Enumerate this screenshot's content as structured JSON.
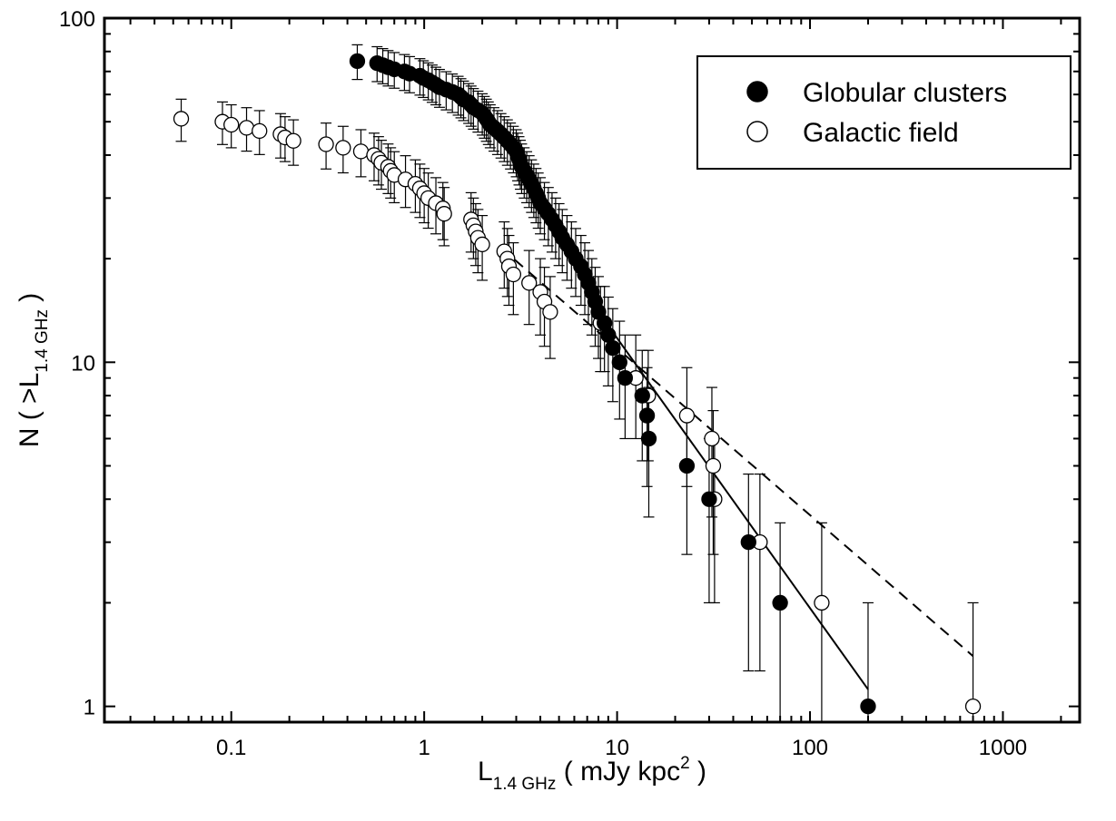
{
  "chart_data": {
    "type": "scatter",
    "title": "",
    "xlabel": {
      "main": "L",
      "sub": "1.4 GHz",
      "rest_before_sup": " ( mJy kpc",
      "sup": "2",
      "rest_after_sup": " )"
    },
    "ylabel": {
      "main": "N ( >L",
      "sub": "1.4 GHz",
      "rest": " )"
    },
    "x_scale": "log",
    "y_scale": "log",
    "xlim": [
      0.022,
      2500
    ],
    "ylim": [
      0.9,
      100
    ],
    "x_ticks": [
      {
        "value": 0.1,
        "label": "0.1"
      },
      {
        "value": 1,
        "label": "1"
      },
      {
        "value": 10,
        "label": "10"
      },
      {
        "value": 100,
        "label": "100"
      },
      {
        "value": 1000,
        "label": "1000"
      }
    ],
    "y_ticks": [
      {
        "value": 1,
        "label": "1"
      },
      {
        "value": 10,
        "label": "10"
      },
      {
        "value": 100,
        "label": "100"
      }
    ],
    "grid": false,
    "legend": {
      "placement": "top-right",
      "entries": [
        {
          "label": "Globular clusters",
          "marker": "filled-circle"
        },
        {
          "label": "Galactic field",
          "marker": "open-circle"
        }
      ]
    },
    "series": [
      {
        "name": "Globular clusters",
        "marker": "filled-circle",
        "points": [
          [
            0.45,
            75
          ],
          [
            0.57,
            74
          ],
          [
            0.61,
            73
          ],
          [
            0.65,
            72
          ],
          [
            0.7,
            71
          ],
          [
            0.79,
            70
          ],
          [
            0.84,
            69
          ],
          [
            0.95,
            68
          ],
          [
            0.99,
            67
          ],
          [
            1.05,
            66
          ],
          [
            1.1,
            65
          ],
          [
            1.15,
            64
          ],
          [
            1.2,
            63
          ],
          [
            1.3,
            62
          ],
          [
            1.4,
            61
          ],
          [
            1.5,
            60
          ],
          [
            1.55,
            59
          ],
          [
            1.6,
            58
          ],
          [
            1.7,
            57
          ],
          [
            1.75,
            56
          ],
          [
            1.8,
            55
          ],
          [
            1.9,
            54
          ],
          [
            2.0,
            53
          ],
          [
            2.05,
            52
          ],
          [
            2.1,
            51
          ],
          [
            2.15,
            50
          ],
          [
            2.2,
            49
          ],
          [
            2.3,
            48
          ],
          [
            2.4,
            47
          ],
          [
            2.5,
            46
          ],
          [
            2.6,
            45
          ],
          [
            2.7,
            44
          ],
          [
            2.8,
            43
          ],
          [
            2.9,
            42
          ],
          [
            3.0,
            41
          ],
          [
            3.05,
            40
          ],
          [
            3.1,
            39
          ],
          [
            3.15,
            38
          ],
          [
            3.2,
            37
          ],
          [
            3.3,
            36
          ],
          [
            3.4,
            35
          ],
          [
            3.5,
            34
          ],
          [
            3.6,
            33
          ],
          [
            3.7,
            32
          ],
          [
            3.8,
            31
          ],
          [
            3.9,
            30
          ],
          [
            4.0,
            29
          ],
          [
            4.2,
            28
          ],
          [
            4.4,
            27
          ],
          [
            4.6,
            26
          ],
          [
            4.8,
            25
          ],
          [
            5.0,
            24
          ],
          [
            5.2,
            23
          ],
          [
            5.5,
            22
          ],
          [
            5.8,
            21
          ],
          [
            6.1,
            20
          ],
          [
            6.5,
            19
          ],
          [
            6.8,
            18
          ],
          [
            7.1,
            17
          ],
          [
            7.4,
            16
          ],
          [
            7.7,
            15
          ],
          [
            8.0,
            14
          ],
          [
            8.6,
            13
          ],
          [
            9.0,
            12
          ],
          [
            9.5,
            11
          ],
          [
            10.3,
            10
          ],
          [
            11.0,
            9
          ],
          [
            13.5,
            8
          ],
          [
            14.3,
            7
          ],
          [
            14.6,
            6
          ],
          [
            23.0,
            5
          ],
          [
            30.0,
            4
          ],
          [
            48.0,
            3
          ],
          [
            70.0,
            2
          ],
          [
            200.0,
            1
          ]
        ]
      },
      {
        "name": "Galactic field",
        "marker": "open-circle",
        "points": [
          [
            0.055,
            51
          ],
          [
            0.09,
            50
          ],
          [
            0.1,
            49
          ],
          [
            0.12,
            48
          ],
          [
            0.14,
            47
          ],
          [
            0.18,
            46
          ],
          [
            0.19,
            45
          ],
          [
            0.21,
            44
          ],
          [
            0.31,
            43
          ],
          [
            0.38,
            42
          ],
          [
            0.47,
            41
          ],
          [
            0.55,
            40
          ],
          [
            0.58,
            39
          ],
          [
            0.6,
            38
          ],
          [
            0.65,
            37
          ],
          [
            0.67,
            36
          ],
          [
            0.7,
            35
          ],
          [
            0.8,
            34
          ],
          [
            0.9,
            33
          ],
          [
            0.95,
            32
          ],
          [
            1.0,
            31
          ],
          [
            1.05,
            30
          ],
          [
            1.15,
            29
          ],
          [
            1.25,
            28
          ],
          [
            1.27,
            27
          ],
          [
            1.75,
            26
          ],
          [
            1.8,
            25
          ],
          [
            1.85,
            24
          ],
          [
            1.9,
            23
          ],
          [
            2.0,
            22
          ],
          [
            2.6,
            21
          ],
          [
            2.7,
            20
          ],
          [
            2.75,
            19
          ],
          [
            2.9,
            18
          ],
          [
            3.5,
            17
          ],
          [
            4.0,
            16
          ],
          [
            4.2,
            15
          ],
          [
            4.5,
            14
          ],
          [
            8.2,
            13
          ],
          [
            12.5,
            9
          ],
          [
            14.5,
            8
          ],
          [
            23.0,
            7
          ],
          [
            31.0,
            6
          ],
          [
            31.5,
            5
          ],
          [
            32.0,
            4
          ],
          [
            55.0,
            3
          ],
          [
            115.0,
            2
          ],
          [
            700.0,
            1
          ]
        ]
      }
    ],
    "fits": [
      {
        "style": "solid",
        "x": [
          8.0,
          200.0
        ],
        "y": [
          14.0,
          1.12
        ]
      },
      {
        "style": "dashed",
        "x": [
          2.5,
          700.0
        ],
        "y": [
          21.5,
          1.4
        ]
      }
    ]
  }
}
